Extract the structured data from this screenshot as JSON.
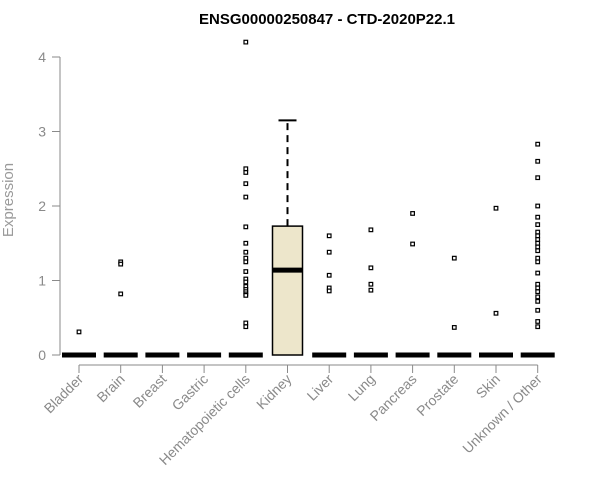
{
  "chart_data": {
    "type": "box",
    "title": "ENSG00000250847 - CTD-2020P22.1",
    "xlabel": "",
    "ylabel": "Expression",
    "ylim": [
      0,
      4.2
    ],
    "yticks": [
      0,
      1,
      2,
      3,
      4
    ],
    "grid": false,
    "legend": "none",
    "box_fill": "#ede6cb",
    "categories": [
      "Bladder",
      "Brain",
      "Breast",
      "Gastric",
      "Hematopoietic cells",
      "Kidney",
      "Liver",
      "Lung",
      "Pancreas",
      "Prostate",
      "Skin",
      "Unknown / Other"
    ],
    "boxes": [
      {
        "category": "Bladder",
        "q1": 0,
        "median": 0,
        "q3": 0,
        "whisker_low": 0,
        "whisker_high": 0,
        "outliers": [
          0.31
        ]
      },
      {
        "category": "Brain",
        "q1": 0,
        "median": 0,
        "q3": 0,
        "whisker_low": 0,
        "whisker_high": 0,
        "outliers": [
          1.25,
          1.22,
          0.82
        ]
      },
      {
        "category": "Breast",
        "q1": 0,
        "median": 0,
        "q3": 0,
        "whisker_low": 0,
        "whisker_high": 0,
        "outliers": []
      },
      {
        "category": "Gastric",
        "q1": 0,
        "median": 0,
        "q3": 0,
        "whisker_low": 0,
        "whisker_high": 0,
        "outliers": []
      },
      {
        "category": "Hematopoietic cells",
        "q1": 0,
        "median": 0,
        "q3": 0,
        "whisker_low": 0,
        "whisker_high": 0,
        "outliers": [
          4.2,
          2.5,
          2.45,
          2.3,
          2.12,
          1.72,
          1.5,
          1.38,
          1.3,
          1.25,
          1.12,
          1.02,
          0.98,
          0.92,
          0.88,
          0.85,
          0.82,
          0.8,
          0.43,
          0.38
        ]
      },
      {
        "category": "Kidney",
        "q1": 0,
        "median": 1.14,
        "q3": 1.73,
        "whisker_low": 0,
        "whisker_high": 3.15,
        "outliers": []
      },
      {
        "category": "Liver",
        "q1": 0,
        "median": 0,
        "q3": 0,
        "whisker_low": 0,
        "whisker_high": 0,
        "outliers": [
          1.6,
          1.38,
          1.07,
          0.9,
          0.86
        ]
      },
      {
        "category": "Lung",
        "q1": 0,
        "median": 0,
        "q3": 0,
        "whisker_low": 0,
        "whisker_high": 0,
        "outliers": [
          1.68,
          1.17,
          0.95,
          0.87
        ]
      },
      {
        "category": "Pancreas",
        "q1": 0,
        "median": 0,
        "q3": 0,
        "whisker_low": 0,
        "whisker_high": 0,
        "outliers": [
          1.9,
          1.49
        ]
      },
      {
        "category": "Prostate",
        "q1": 0,
        "median": 0,
        "q3": 0,
        "whisker_low": 0,
        "whisker_high": 0,
        "outliers": [
          1.3,
          0.37
        ]
      },
      {
        "category": "Skin",
        "q1": 0,
        "median": 0,
        "q3": 0,
        "whisker_low": 0,
        "whisker_high": 0,
        "outliers": [
          1.97,
          0.56
        ]
      },
      {
        "category": "Unknown / Other",
        "q1": 0,
        "median": 0,
        "q3": 0,
        "whisker_low": 0,
        "whisker_high": 0,
        "outliers": [
          2.83,
          2.6,
          2.38,
          2.0,
          1.85,
          1.75,
          1.65,
          1.6,
          1.55,
          1.5,
          1.45,
          1.4,
          1.3,
          1.25,
          1.1,
          0.95,
          0.9,
          0.85,
          0.78,
          0.72,
          0.6,
          0.45,
          0.38
        ]
      }
    ]
  }
}
